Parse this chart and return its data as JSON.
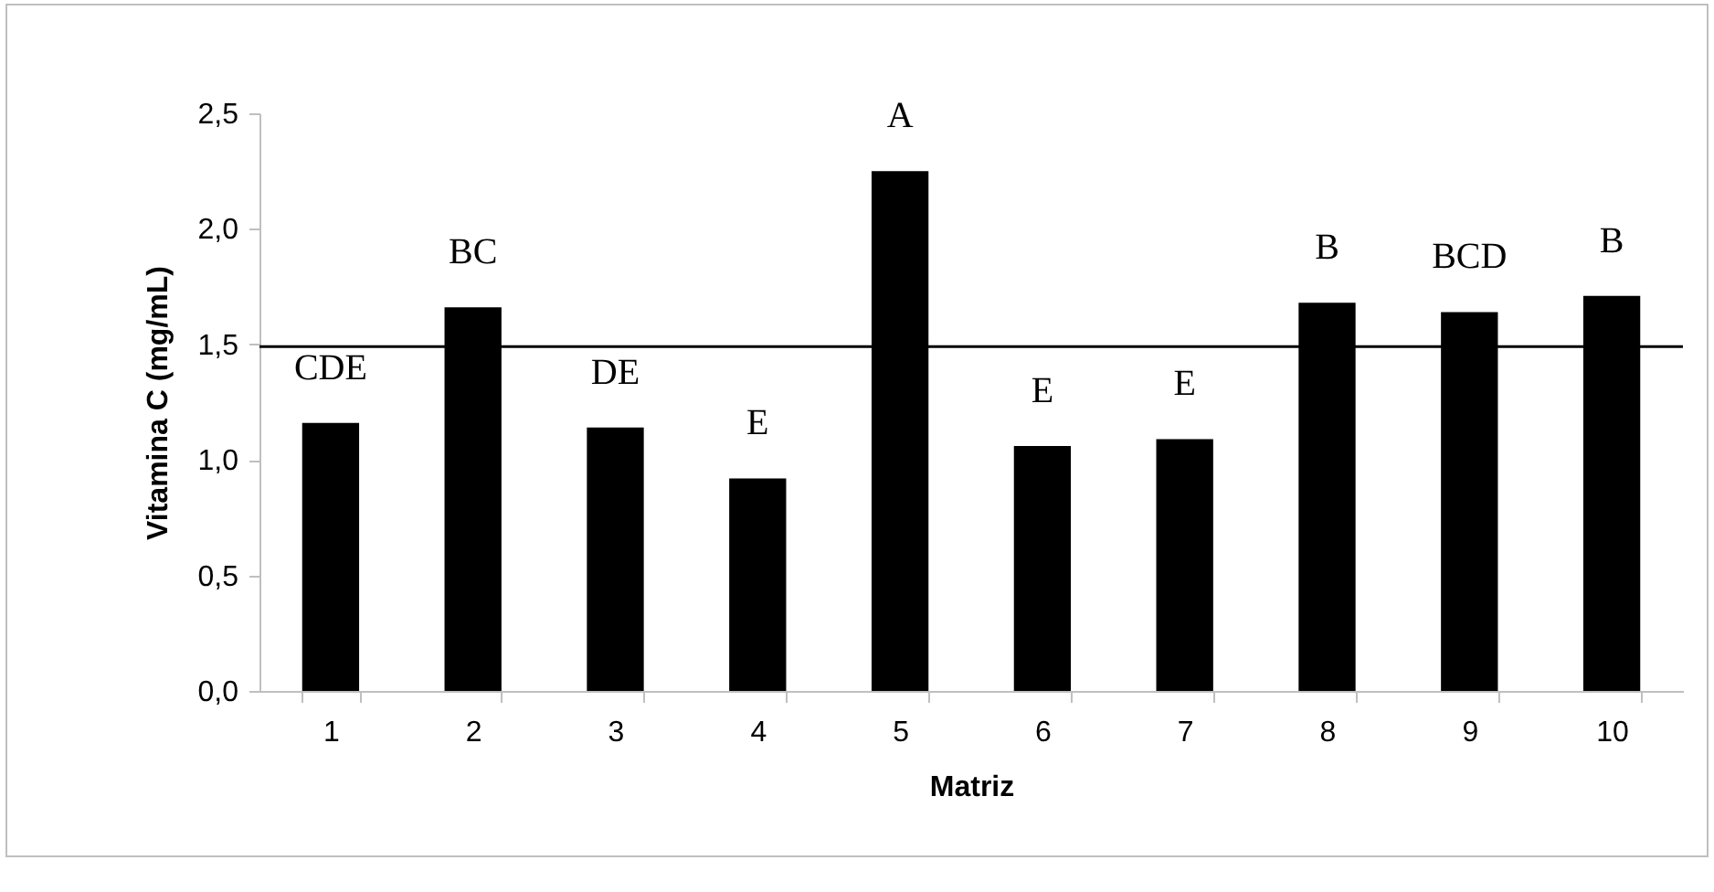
{
  "chart_data": {
    "type": "bar",
    "xlabel": "Matriz",
    "ylabel": "Vitamina C (mg/mL)",
    "categories": [
      "1",
      "2",
      "3",
      "4",
      "5",
      "6",
      "7",
      "8",
      "9",
      "10"
    ],
    "values": [
      1.16,
      1.66,
      1.14,
      0.92,
      2.25,
      1.06,
      1.09,
      1.68,
      1.64,
      1.71
    ],
    "color": "#000000",
    "ylim": [
      0,
      2.5
    ],
    "yticks": [
      {
        "value": 0,
        "label": "0,0"
      },
      {
        "value": 0.5,
        "label": "0,5"
      },
      {
        "value": 1,
        "label": "1,0"
      },
      {
        "value": 1.5,
        "label": "1,5"
      },
      {
        "value": 2,
        "label": "2,0"
      },
      {
        "value": 2.5,
        "label": "2,5"
      }
    ],
    "ref_lines": [
      {
        "axis": "y",
        "value": 1.49,
        "color": "#000000"
      }
    ],
    "annotations": [
      {
        "text": "CDE",
        "x": "1",
        "y": 1.16
      },
      {
        "text": "BC",
        "x": "2",
        "y": 1.66
      },
      {
        "text": "DE",
        "x": "3",
        "y": 1.14
      },
      {
        "text": "E",
        "x": "4",
        "y": 0.92
      },
      {
        "text": "A",
        "x": "5",
        "y": 2.25
      },
      {
        "text": "E",
        "x": "6",
        "y": 1.06
      },
      {
        "text": "E",
        "x": "7",
        "y": 1.09
      },
      {
        "text": "B",
        "x": "8",
        "y": 1.68
      },
      {
        "text": "BCD",
        "x": "9",
        "y": 1.64
      },
      {
        "text": "B",
        "x": "10",
        "y": 1.71
      }
    ],
    "grid": false
  }
}
